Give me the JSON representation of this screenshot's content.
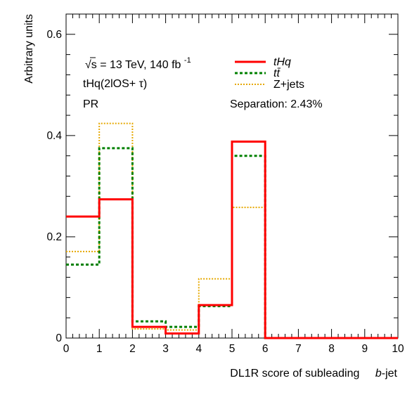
{
  "chart_data": {
    "type": "step-histogram",
    "xlabel": "DL1R score of subleading",
    "xlabel_italic_suffix": "b",
    "xlabel_tail": "-jet",
    "ylabel": "Arbitrary units",
    "xlim": [
      0,
      10
    ],
    "ylim": [
      0,
      0.64
    ],
    "xticks": [
      "0",
      "1",
      "2",
      "3",
      "4",
      "5",
      "6",
      "7",
      "8",
      "9",
      "10"
    ],
    "yticks": [
      {
        "value": 0,
        "label": "0"
      },
      {
        "value": 0.2,
        "label": "0.2"
      },
      {
        "value": 0.4,
        "label": "0.4"
      },
      {
        "value": 0.6,
        "label": "0.6"
      }
    ],
    "bin_edges": [
      0,
      1,
      2,
      3,
      4,
      5,
      6,
      7,
      8,
      9,
      10
    ],
    "series": [
      {
        "name": "tHq",
        "color": "#ff0000",
        "style": "solid",
        "values": [
          0.24,
          0.274,
          0.022,
          0.009,
          0.065,
          0.388,
          0.0,
          0.0,
          0.0,
          0.0
        ]
      },
      {
        "name": "tt",
        "color": "#008000",
        "style": "dashed",
        "values": [
          0.145,
          0.375,
          0.033,
          0.022,
          0.063,
          0.36,
          0.0,
          0.0,
          0.0,
          0.0
        ]
      },
      {
        "name": "Z+jets",
        "color": "#e6a800",
        "style": "dotted",
        "values": [
          0.171,
          0.424,
          0.018,
          0.016,
          0.117,
          0.258,
          0.0,
          0.0,
          0.0,
          0.0
        ]
      }
    ],
    "annotations": {
      "energy": "= 13 TeV, 140 fb",
      "sqrt": "√s",
      "lumi_exp": "-1",
      "channel": "tHq(2lOS+ τ)",
      "region": "PR",
      "separation": "Separation: 2.43%"
    },
    "legend": {
      "placement": "top-right",
      "entries": [
        "tHq",
        "tt̄",
        "Z+jets"
      ]
    },
    "grid": false
  }
}
